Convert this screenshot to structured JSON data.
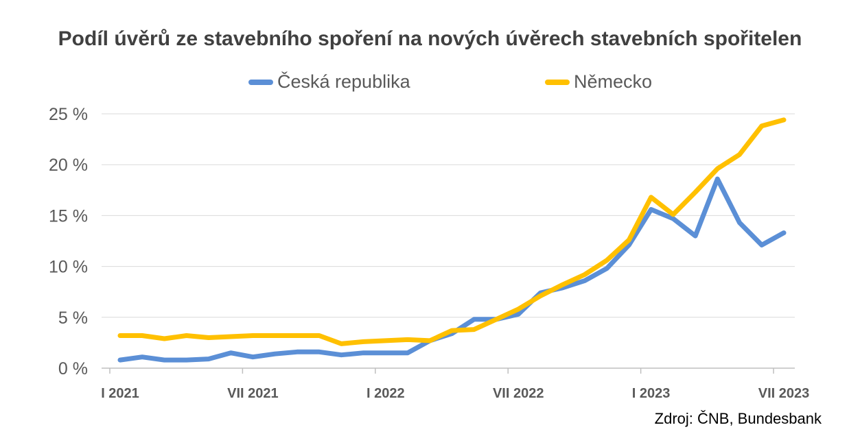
{
  "chart_data": {
    "type": "line",
    "title": "Podíl úvěrů ze stavebního spoření na nových úvěrech stavebních spořitelen",
    "source": "Zdroj: ČNB, Bundesbank",
    "x_tick_labels": [
      "I 2021",
      "VII 2021",
      "I 2022",
      "VII 2022",
      "I 2023",
      "VII 2023"
    ],
    "x_tick_months": [
      0,
      6,
      12,
      18,
      24,
      30
    ],
    "y_tick_labels": [
      "0 %",
      "5 %",
      "10 %",
      "15 %",
      "20 %",
      "25 %"
    ],
    "ylim": [
      0,
      25
    ],
    "grid": true,
    "legend_position": "top",
    "x": [
      "2021-01",
      "2021-02",
      "2021-03",
      "2021-04",
      "2021-05",
      "2021-06",
      "2021-07",
      "2021-08",
      "2021-09",
      "2021-10",
      "2021-11",
      "2021-12",
      "2022-01",
      "2022-02",
      "2022-03",
      "2022-04",
      "2022-05",
      "2022-06",
      "2022-07",
      "2022-08",
      "2022-09",
      "2022-10",
      "2022-11",
      "2022-12",
      "2023-01",
      "2023-02",
      "2023-03",
      "2023-04",
      "2023-05",
      "2023-06",
      "2023-07"
    ],
    "series": [
      {
        "name": "Česká republika",
        "color": "#5B8FD6",
        "values": [
          0.8,
          1.1,
          0.8,
          0.8,
          0.9,
          1.5,
          1.1,
          1.4,
          1.6,
          1.6,
          1.3,
          1.5,
          1.5,
          1.5,
          2.7,
          3.4,
          4.8,
          4.8,
          5.3,
          7.4,
          7.9,
          8.6,
          9.8,
          12.1,
          15.6,
          14.7,
          13.0,
          18.6,
          14.3,
          12.1,
          13.3
        ]
      },
      {
        "name": "Německo",
        "color": "#FFC000",
        "values": [
          3.2,
          3.2,
          2.9,
          3.2,
          3.0,
          3.1,
          3.2,
          3.2,
          3.2,
          3.2,
          2.4,
          2.6,
          2.7,
          2.8,
          2.7,
          3.7,
          3.8,
          4.8,
          5.8,
          7.1,
          8.2,
          9.2,
          10.6,
          12.6,
          16.8,
          15.1,
          17.3,
          19.6,
          21.0,
          23.8,
          24.4
        ]
      }
    ]
  }
}
